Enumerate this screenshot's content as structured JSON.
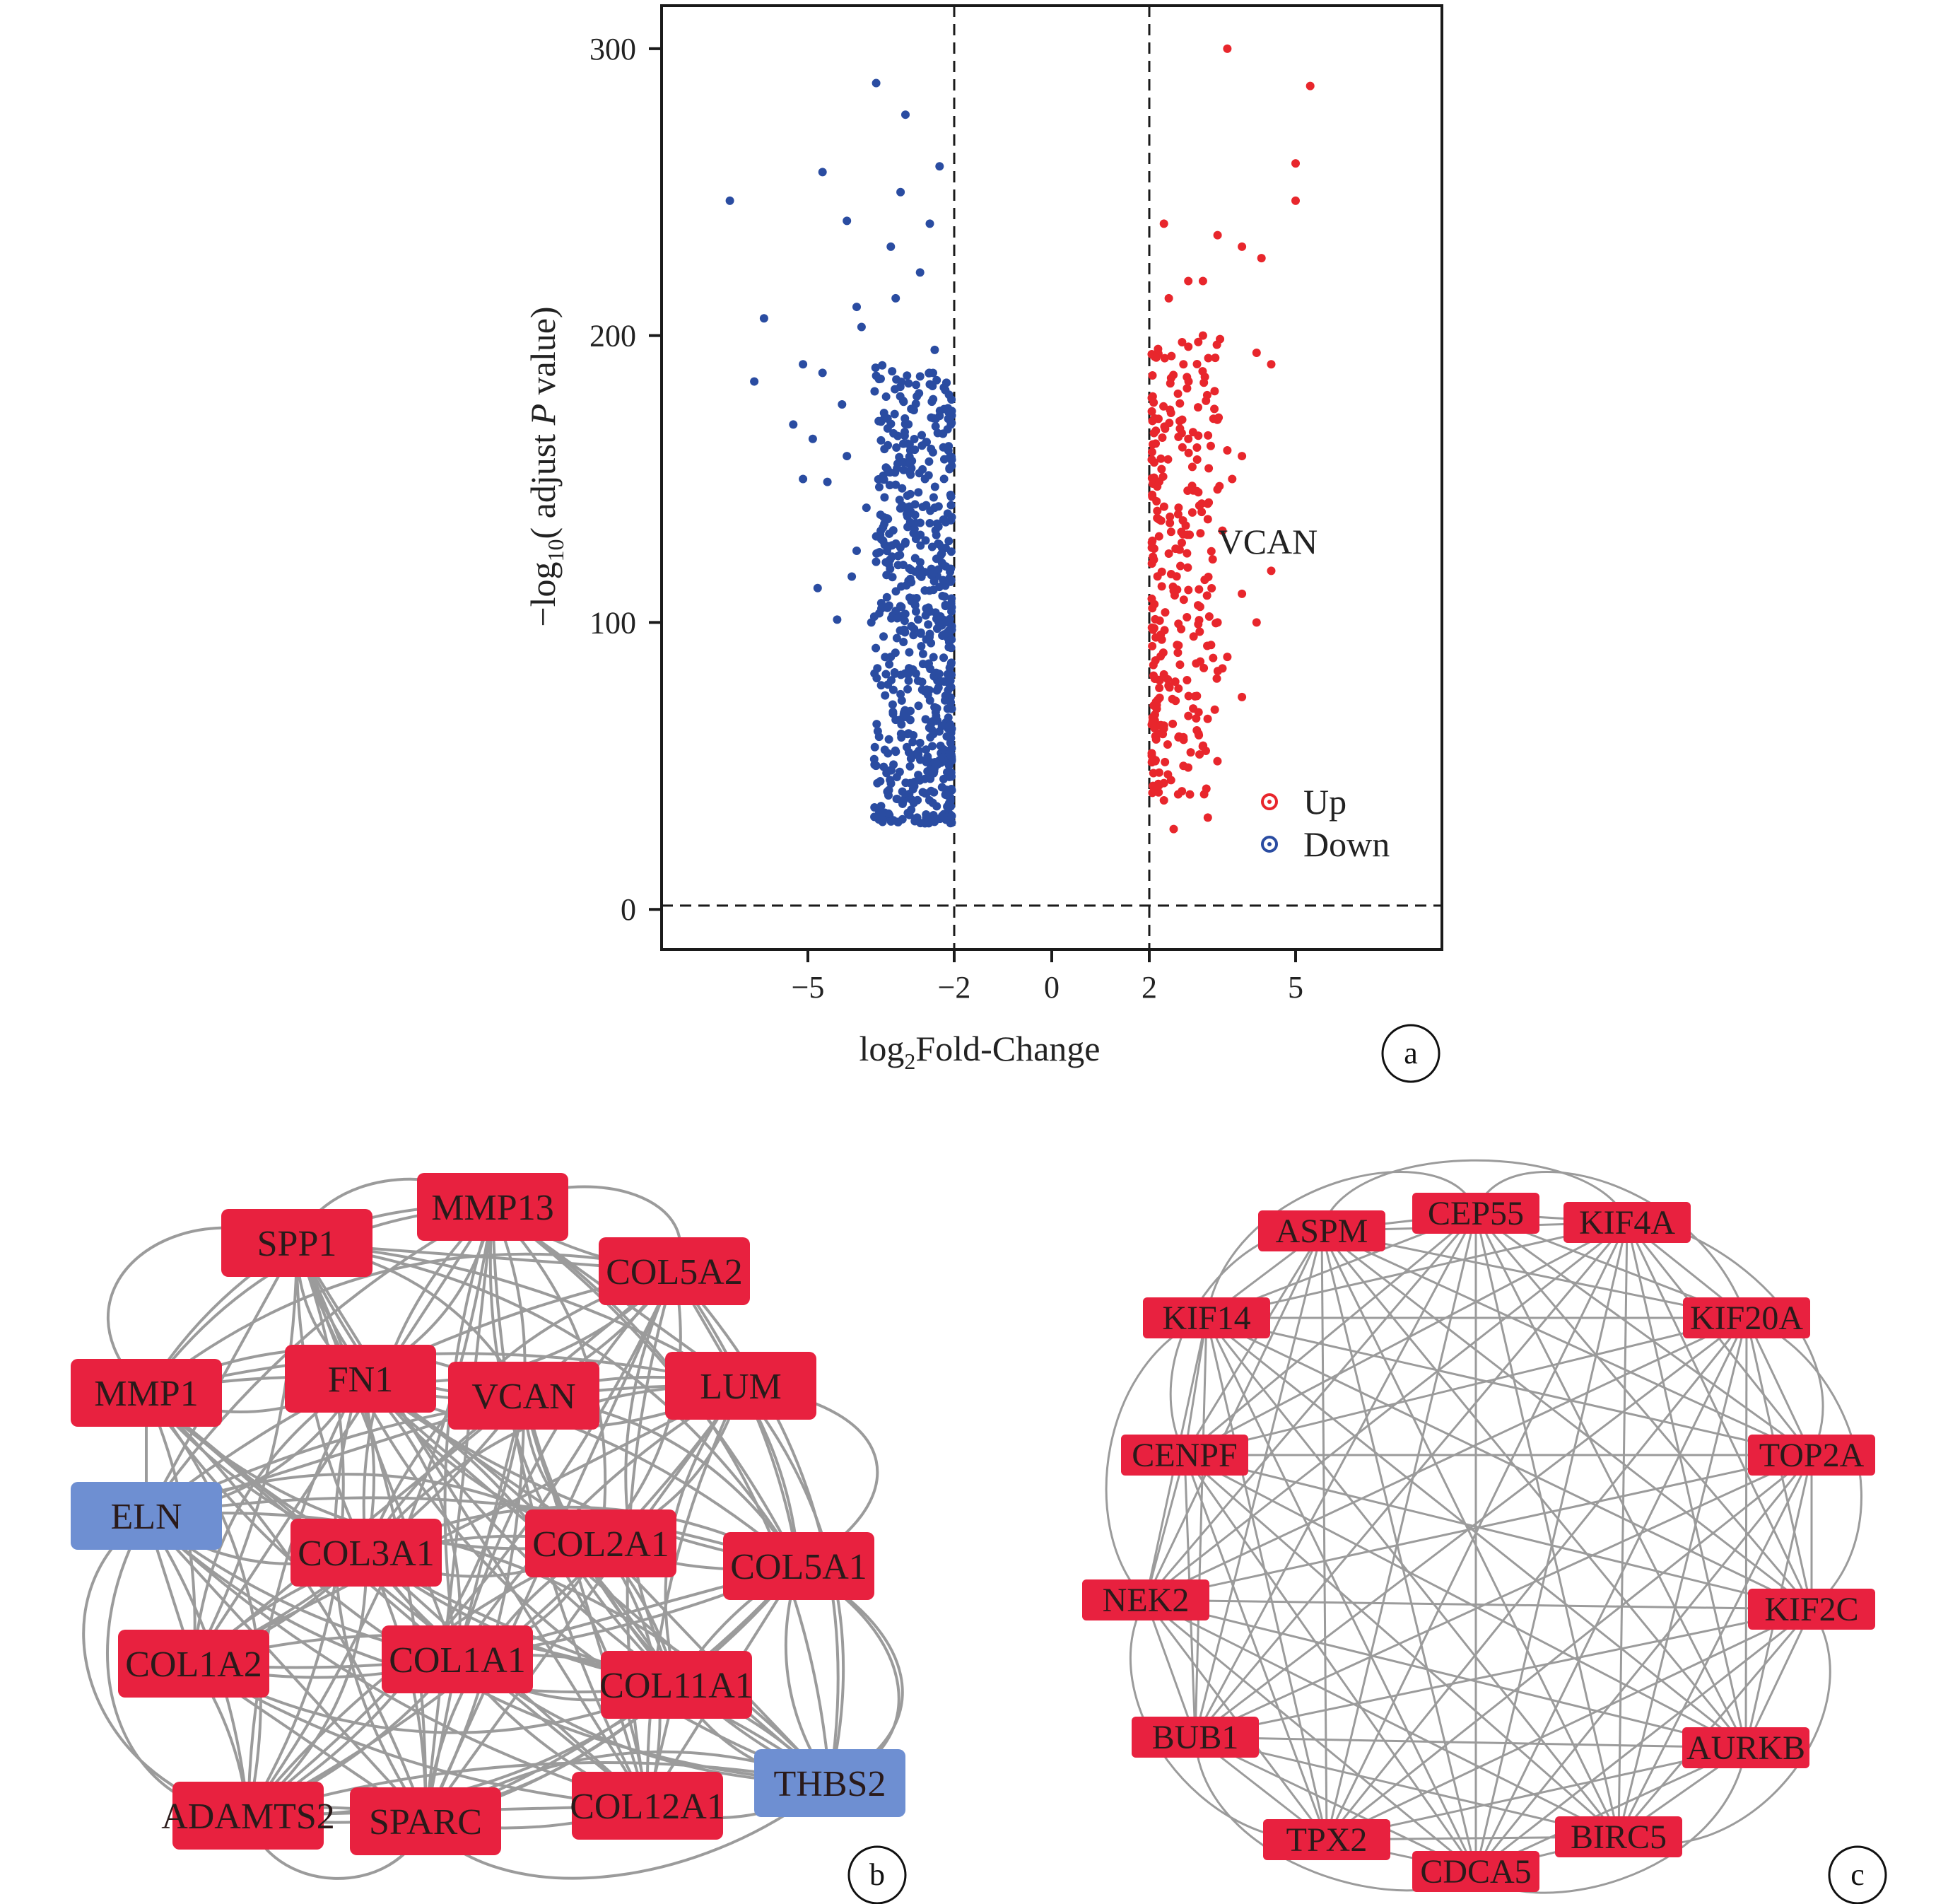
{
  "chart_data": [
    {
      "panel": "a",
      "type": "scatter",
      "xlabel": "log2Fold-Change",
      "xlabel_parts": {
        "pre": "log",
        "sub": "2",
        "post": "Fold-Change"
      },
      "ylabel": "-log10 (adjust P value)",
      "ylabel_parts": {
        "pre": "−log",
        "sub": "10",
        "mid": "( adjust ",
        "ital": "P",
        "post": " value)"
      },
      "xlim": [
        -8.0,
        8.0
      ],
      "ylim": [
        -14,
        315
      ],
      "x_ticks": [
        -5,
        -2,
        0,
        2,
        5
      ],
      "x_tick_labels": [
        "−5",
        "−2",
        "0",
        "2",
        "5"
      ],
      "y_ticks": [
        0,
        100,
        200,
        300
      ],
      "y_tick_labels": [
        "0",
        "100",
        "200",
        "300"
      ],
      "thresholds": {
        "x": [
          -2,
          2
        ],
        "y": 1.3
      },
      "annotation": {
        "text": "VCAN",
        "x": 2.1,
        "y": 128
      },
      "legend": {
        "position": "bottom-right"
      },
      "series": [
        {
          "name": "Up",
          "color": "#e8262c",
          "points": [
            [
              3.6,
              300
            ],
            [
              5.3,
              287
            ],
            [
              5.0,
              260
            ],
            [
              5.0,
              247
            ],
            [
              3.4,
              235
            ],
            [
              3.9,
              231
            ],
            [
              4.3,
              227
            ],
            [
              2.3,
              239
            ],
            [
              2.8,
              219
            ],
            [
              2.4,
              213
            ],
            [
              3.1,
              219
            ],
            [
              4.2,
              194
            ],
            [
              4.5,
              190
            ],
            [
              3.0,
              175
            ],
            [
              3.6,
              160
            ],
            [
              3.9,
              158
            ],
            [
              3.7,
              150
            ],
            [
              2.6,
              140
            ],
            [
              3.5,
              132
            ],
            [
              3.3,
              122
            ],
            [
              4.5,
              118
            ],
            [
              4.2,
              100
            ],
            [
              3.9,
              110
            ],
            [
              3.5,
              84
            ],
            [
              3.9,
              74
            ],
            [
              3.2,
              32
            ],
            [
              2.5,
              28
            ],
            [
              2.3,
              38
            ],
            [
              2.7,
              60
            ],
            [
              2.9,
              70
            ],
            [
              3.4,
              100
            ],
            [
              3.6,
              88
            ],
            [
              2.7,
              190
            ],
            [
              3.1,
              200
            ],
            [
              2.8,
              164
            ],
            [
              2.2,
              130
            ],
            [
              2.5,
              111
            ],
            [
              2.1,
              98
            ],
            [
              2.6,
              92
            ],
            [
              3.0,
              106
            ],
            [
              2.4,
              124
            ],
            [
              2.9,
              146
            ],
            [
              3.2,
              136
            ],
            [
              2.2,
              80
            ],
            [
              2.7,
              50
            ],
            [
              2.3,
              44
            ]
          ]
        },
        {
          "name": "Down",
          "color": "#2a4ca1",
          "points": [
            [
              -3.6,
              288
            ],
            [
              -3.0,
              277
            ],
            [
              -4.7,
              257
            ],
            [
              -2.3,
              259
            ],
            [
              -6.6,
              247
            ],
            [
              -3.1,
              250
            ],
            [
              -4.2,
              240
            ],
            [
              -2.5,
              239
            ],
            [
              -3.3,
              231
            ],
            [
              -2.7,
              222
            ],
            [
              -3.2,
              213
            ],
            [
              -4.0,
              210
            ],
            [
              -5.9,
              206
            ],
            [
              -3.9,
              203
            ],
            [
              -2.4,
              195
            ],
            [
              -5.1,
              190
            ],
            [
              -6.1,
              184
            ],
            [
              -3.6,
              186
            ],
            [
              -2.5,
              183
            ],
            [
              -4.3,
              176
            ],
            [
              -5.3,
              169
            ],
            [
              -4.9,
              164
            ],
            [
              -4.6,
              149
            ],
            [
              -3.2,
              148
            ],
            [
              -3.8,
              140
            ],
            [
              -4.0,
              125
            ],
            [
              -4.1,
              116
            ],
            [
              -4.4,
              101
            ],
            [
              -3.7,
              100
            ],
            [
              -4.8,
              112
            ],
            [
              -3.4,
              121
            ],
            [
              -5.1,
              150
            ],
            [
              -4.7,
              187
            ],
            [
              -2.9,
              66
            ],
            [
              -3.0,
              39
            ],
            [
              -3.5,
              36
            ],
            [
              -2.6,
              30
            ],
            [
              -2.2,
              32
            ],
            [
              -3.1,
              75
            ],
            [
              -3.3,
              88
            ],
            [
              -2.8,
              106
            ],
            [
              -3.0,
              128
            ],
            [
              -2.4,
              140
            ],
            [
              -2.9,
              160
            ],
            [
              -2.3,
              172
            ],
            [
              -3.5,
              170
            ],
            [
              -2.6,
              150
            ],
            [
              -3.2,
              104
            ],
            [
              -2.5,
              96
            ],
            [
              -3.4,
              82
            ],
            [
              -2.7,
              58
            ],
            [
              -2.3,
              52
            ],
            [
              -2.9,
              44
            ],
            [
              -3.6,
              130
            ],
            [
              -4.2,
              158
            ]
          ]
        }
      ]
    },
    {
      "panel": "b",
      "type": "network",
      "nodes": [
        {
          "id": "SPP1",
          "color": "#e8213f"
        },
        {
          "id": "MMP13",
          "color": "#e8213f"
        },
        {
          "id": "COL5A2",
          "color": "#e8213f"
        },
        {
          "id": "MMP1",
          "color": "#e8213f"
        },
        {
          "id": "FN1",
          "color": "#e8213f"
        },
        {
          "id": "VCAN",
          "color": "#e8213f"
        },
        {
          "id": "LUM",
          "color": "#e8213f"
        },
        {
          "id": "ELN",
          "color": "#6e8fd2"
        },
        {
          "id": "COL3A1",
          "color": "#e8213f"
        },
        {
          "id": "COL2A1",
          "color": "#e8213f"
        },
        {
          "id": "COL5A1",
          "color": "#e8213f"
        },
        {
          "id": "COL1A2",
          "color": "#e8213f"
        },
        {
          "id": "COL1A1",
          "color": "#e8213f"
        },
        {
          "id": "COL11A1",
          "color": "#e8213f"
        },
        {
          "id": "THBS2",
          "color": "#6e8fd2"
        },
        {
          "id": "ADAMTS2",
          "color": "#e8213f"
        },
        {
          "id": "SPARC",
          "color": "#e8213f"
        },
        {
          "id": "COL12A1",
          "color": "#e8213f"
        }
      ]
    },
    {
      "panel": "c",
      "type": "network",
      "nodes": [
        {
          "id": "ASPM",
          "color": "#e8213f"
        },
        {
          "id": "CEP55",
          "color": "#e8213f"
        },
        {
          "id": "KIF4A",
          "color": "#e8213f"
        },
        {
          "id": "KIF14",
          "color": "#e8213f"
        },
        {
          "id": "KIF20A",
          "color": "#e8213f"
        },
        {
          "id": "CENPF",
          "color": "#e8213f"
        },
        {
          "id": "TOP2A",
          "color": "#e8213f"
        },
        {
          "id": "NEK2",
          "color": "#e8213f"
        },
        {
          "id": "KIF2C",
          "color": "#e8213f"
        },
        {
          "id": "BUB1",
          "color": "#e8213f"
        },
        {
          "id": "AURKB",
          "color": "#e8213f"
        },
        {
          "id": "TPX2",
          "color": "#e8213f"
        },
        {
          "id": "BIRC5",
          "color": "#e8213f"
        },
        {
          "id": "CDCA5",
          "color": "#e8213f"
        }
      ]
    }
  ],
  "panel_labels": [
    "a",
    "b",
    "c"
  ],
  "colors": {
    "edge": "#9b9b9b",
    "axis": "#1a1a1a"
  }
}
